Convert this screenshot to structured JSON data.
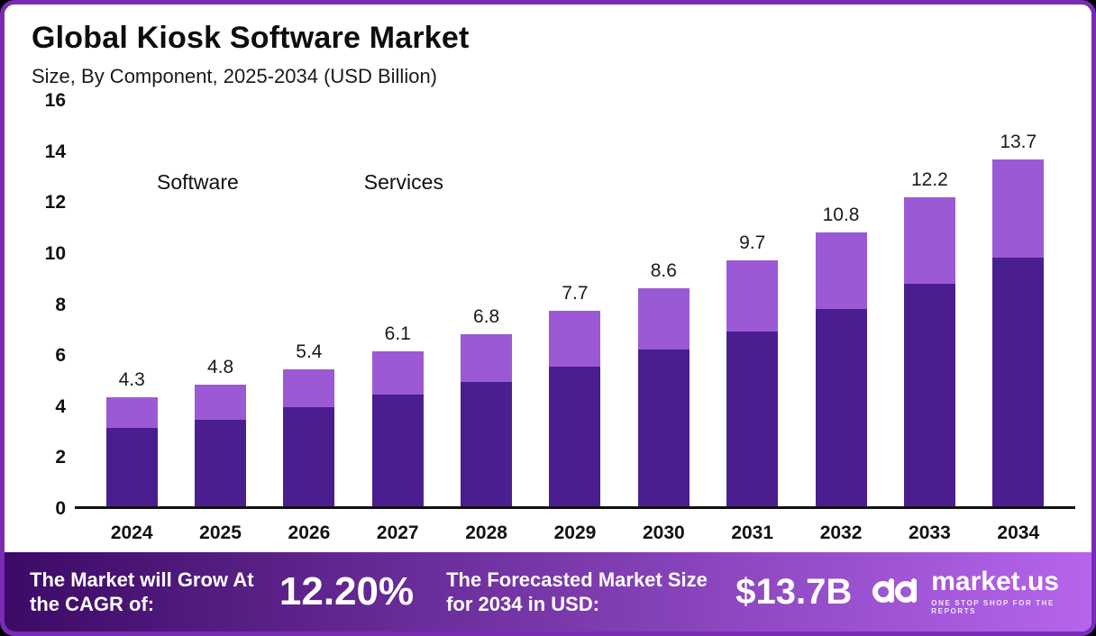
{
  "header": {
    "title": "Global Kiosk Software Market",
    "subtitle": "Size, By Component, 2025-2034 (USD Billion)"
  },
  "chart_data": {
    "type": "bar",
    "stacked": true,
    "title": "Global Kiosk Software Market Size, By Component, 2025-2034 (USD Billion)",
    "categories": [
      "2024",
      "2025",
      "2026",
      "2027",
      "2028",
      "2029",
      "2030",
      "2031",
      "2032",
      "2033",
      "2034"
    ],
    "series": [
      {
        "name": "Software",
        "values": [
          3.1,
          3.4,
          3.9,
          4.4,
          4.9,
          5.5,
          6.2,
          6.9,
          7.8,
          8.8,
          9.8
        ]
      },
      {
        "name": "Services",
        "values": [
          1.2,
          1.4,
          1.5,
          1.7,
          1.9,
          2.2,
          2.4,
          2.8,
          3.0,
          3.4,
          3.9
        ]
      }
    ],
    "totals": [
      4.3,
      4.8,
      5.4,
      6.1,
      6.8,
      7.7,
      8.6,
      9.7,
      10.8,
      12.2,
      13.7
    ],
    "ylim": [
      0,
      16
    ],
    "yticks": [
      0,
      2,
      4,
      6,
      8,
      10,
      12,
      14,
      16
    ],
    "legend_position": "top-left-inside",
    "grid": false
  },
  "colors": {
    "software": "#4b1e8f",
    "services": "#9b59d6",
    "frame_border": "#7a2bb5",
    "footer_left": "#3c0a66",
    "footer_right": "#b565ec"
  },
  "footer": {
    "cagr_label": "The Market will Grow At the CAGR of:",
    "cagr_value": "12.20%",
    "forecast_label": "The Forecasted Market Size for 2034 in USD:",
    "forecast_value": "$13.7B",
    "brand": "market.us",
    "brand_tagline": "ONE STOP SHOP FOR THE REPORTS"
  }
}
